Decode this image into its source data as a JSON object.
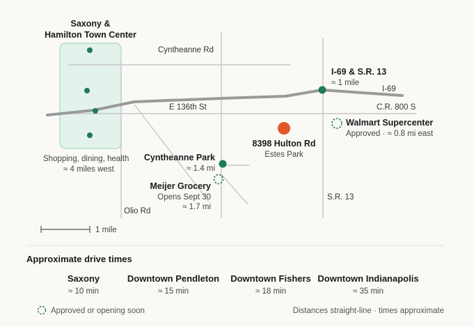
{
  "places": {
    "saxony": {
      "name_line1": "Saxony &",
      "name_line2": "Hamilton Town Center",
      "desc": "Shopping, dining, health",
      "distance": "≈ 4 miles west"
    },
    "i69": {
      "name": "I-69 & S.R. 13",
      "distance": "≈ 1 mile"
    },
    "walmart": {
      "name": "Walmart Supercenter",
      "detail": "Approved · ≈ 0.8 mi east"
    },
    "property": {
      "name": "8398 Hulton Rd",
      "sub": "Estes Park"
    },
    "cyntheanne_park": {
      "name": "Cyntheanne Park",
      "distance": "≈ 1.4 mi"
    },
    "meijer": {
      "name": "Meijer Grocery",
      "line2": "Opens Sept 30",
      "distance": "≈ 1.7 mi"
    }
  },
  "roads": {
    "cyntheanne_rd": "Cyntheanne Rd",
    "e136": "E 136th St",
    "i69": "I-69",
    "cr800s": "C.R. 800 S",
    "sr13": "S.R. 13",
    "olio": "Olio Rd"
  },
  "scale": {
    "label": "1 mile"
  },
  "drive_times": {
    "title": "Approximate drive times",
    "items": [
      {
        "name": "Saxony",
        "time": "≈ 10 min"
      },
      {
        "name": "Downtown Pendleton",
        "time": "≈ 15 min"
      },
      {
        "name": "Downtown Fishers",
        "time": "≈ 18 min"
      },
      {
        "name": "Downtown Indianapolis",
        "time": "≈ 35 min"
      }
    ]
  },
  "legend": {
    "approved_label": "Approved or opening soon",
    "note": "Distances straight-line · times approximate"
  },
  "colors": {
    "poi_green": "#1f7a5a",
    "property_orange": "#e0582a",
    "saxony_area_fill": "#e3f3ec",
    "saxony_area_stroke": "#a9d7c1",
    "major_road": "#9a9a9a",
    "minor_road": "#c6c6c6"
  }
}
